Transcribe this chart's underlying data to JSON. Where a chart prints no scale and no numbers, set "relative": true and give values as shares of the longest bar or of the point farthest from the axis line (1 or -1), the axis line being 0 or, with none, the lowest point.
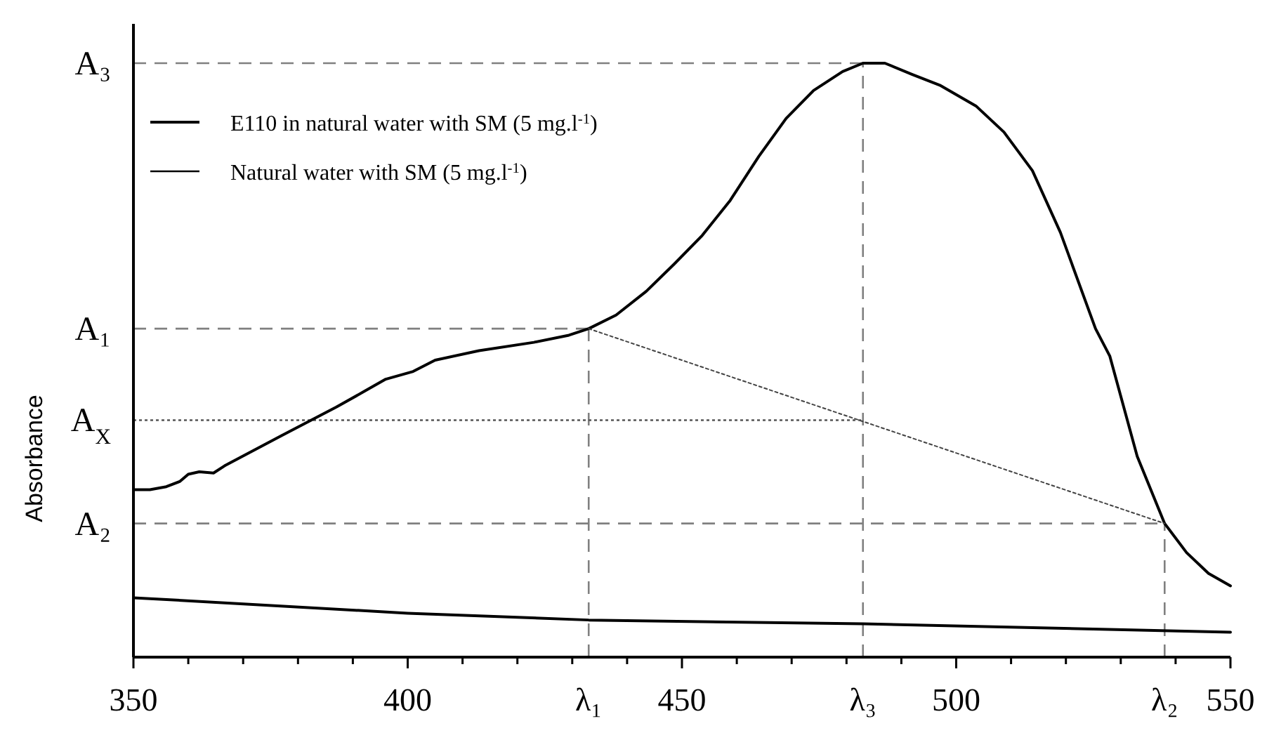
{
  "chart_data": {
    "type": "line",
    "relative": true,
    "ylabel": "Absorbance",
    "xlim": [
      350,
      550
    ],
    "xticks": [
      350,
      {
        "value": 360,
        "label": null
      },
      {
        "value": 370,
        "label": null
      },
      {
        "value": 380,
        "label": null
      },
      {
        "value": 390,
        "label": null
      },
      400,
      {
        "value": 410,
        "label": null
      },
      {
        "value": 420,
        "label": null
      },
      {
        "value": 430,
        "label": null
      },
      {
        "value": 440,
        "label": null
      },
      450,
      {
        "value": 460,
        "label": null
      },
      {
        "value": 470,
        "label": null
      },
      {
        "value": 480,
        "label": null
      },
      {
        "value": 490,
        "label": null
      },
      500,
      {
        "value": 510,
        "label": null
      },
      {
        "value": 520,
        "label": null
      },
      {
        "value": 530,
        "label": null
      },
      {
        "value": 540,
        "label": null
      },
      550
    ],
    "legend": "top left",
    "series": [
      {
        "name": "E110 in natural water with SM (5 mg.l$^{-1}$)",
        "color": "#000000",
        "line_style": "solid",
        "x": [
          350,
          353,
          356,
          358.5,
          360,
          362,
          364.6,
          366.6,
          377,
          387,
          392,
          396,
          401,
          405,
          413,
          423,
          429.4,
          433,
          438,
          443.5,
          448.6,
          453.7,
          458.8,
          464,
          469,
          474,
          479.3,
          483,
          487,
          492,
          497,
          503.6,
          508.7,
          513.9,
          519,
          525.4,
          528,
          533,
          538,
          542,
          546,
          550
        ],
        "values": [
          0.282,
          0.282,
          0.287,
          0.296,
          0.308,
          0.312,
          0.31,
          0.322,
          0.373,
          0.421,
          0.447,
          0.468,
          0.481,
          0.5,
          0.516,
          0.53,
          0.542,
          0.553,
          0.576,
          0.616,
          0.662,
          0.71,
          0.769,
          0.843,
          0.907,
          0.954,
          0.986,
          1,
          1,
          0.981,
          0.963,
          0.928,
          0.884,
          0.819,
          0.715,
          0.553,
          0.507,
          0.338,
          0.225,
          0.176,
          0.141,
          0.12
        ]
      },
      {
        "name": "Natural water with SM (5 mg.l$^{-1}$)",
        "color": "#000000",
        "line_style": "solid",
        "x": [
          350,
          400,
          433,
          483,
          550
        ],
        "values": [
          0.1,
          0.074,
          0.0625,
          0.056,
          0.042
        ]
      },
      {
        "color": "#444444",
        "line_style": "dotted",
        "x": [
          433,
          538
        ],
        "values": [
          0.553,
          0.225
        ]
      }
    ],
    "ref_lines": [
      {
        "axis": "y",
        "value": 1,
        "label": "A₃",
        "color": "#808080",
        "line_style": "dashed"
      },
      {
        "axis": "y",
        "value": 0.553,
        "label": "A₁",
        "color": "#808080",
        "line_style": "dashed"
      },
      {
        "axis": "y",
        "value": 0.399,
        "label": "A$_{X}$",
        "color": "#555555",
        "line_style": "dotted"
      },
      {
        "axis": "y",
        "value": 0.225,
        "label": "A₂",
        "color": "#808080",
        "line_style": "dashed"
      },
      {
        "axis": "x",
        "value": 433,
        "label": "λ₁",
        "color": "#808080",
        "line_style": "dashed"
      },
      {
        "axis": "x",
        "value": 483,
        "label": "λ₃",
        "color": "#808080",
        "line_style": "dashed"
      },
      {
        "axis": "x",
        "value": 538,
        "label": "λ₂",
        "color": "#808080",
        "line_style": "dashed"
      }
    ]
  }
}
